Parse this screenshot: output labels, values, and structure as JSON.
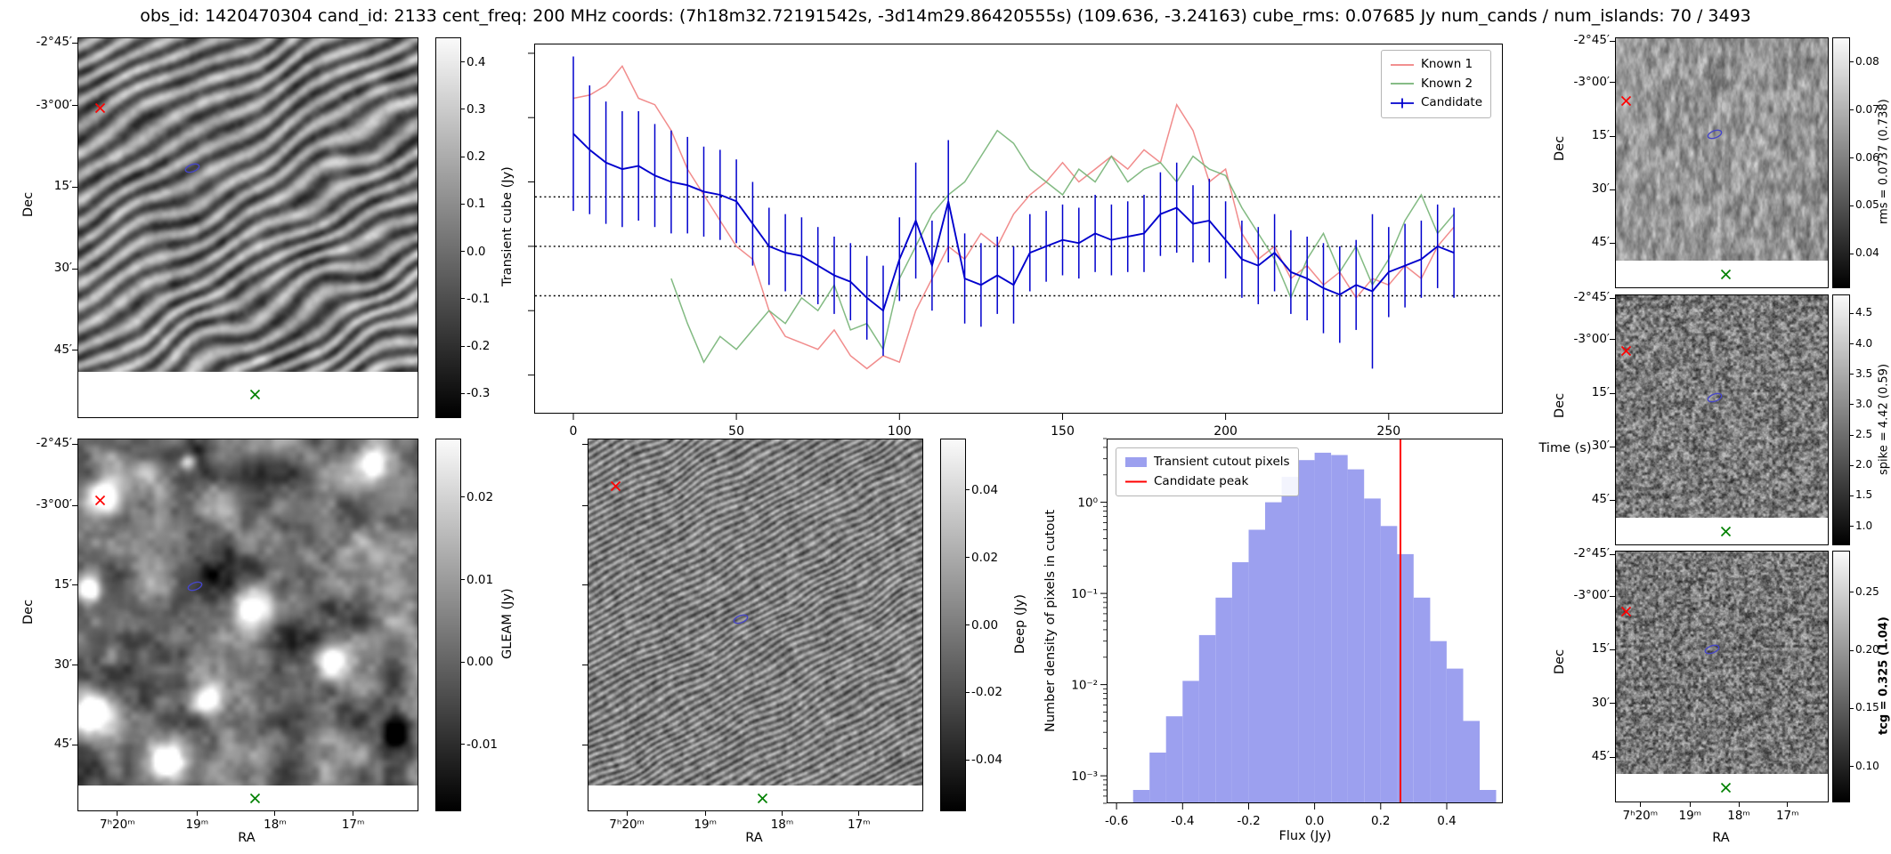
{
  "title": "obs_id: 1420470304 cand_id: 2133 cent_freq: 200 MHz coords: (7h18m32.72191542s, -3d14m29.86420555s) (109.636, -3.24163) cube_rms: 0.07685 Jy num_cands / num_islands: 70 / 3493",
  "axis_labels": {
    "dec": "Dec",
    "ra": "RA",
    "time": "Time (s)",
    "flux": "Flux (Jy)",
    "density": "Number density of pixels in cutout"
  },
  "dec_ticks": [
    "-2°45′",
    "-3°00′",
    "15′",
    "30′",
    "45′"
  ],
  "ra_ticks": [
    "7ʰ20ᵐ",
    "19ᵐ",
    "18ᵐ",
    "17ᵐ"
  ],
  "colors": {
    "known1": "#f08080",
    "known2": "#74b274",
    "candidate": "#0000cd",
    "hist_bar": "#7b80ea",
    "candidate_peak": "#ff0000",
    "marker_x_red": "#ff0000",
    "marker_x_green": "#008000",
    "marker_ellipse": "#4646c8"
  },
  "colorbars": {
    "transient": {
      "label": "Transient cube (Jy)",
      "min": -0.35,
      "max": 0.45,
      "ticks": [
        "0.4",
        "0.3",
        "0.2",
        "0.1",
        "0.0",
        "-0.1",
        "-0.2",
        "-0.3"
      ]
    },
    "gleam": {
      "label": "GLEAM (Jy)",
      "min": -0.018,
      "max": 0.027,
      "ticks": [
        "0.02",
        "0.01",
        "0.00",
        "-0.01"
      ]
    },
    "deep": {
      "label": "Deep (Jy)",
      "min": -0.055,
      "max": 0.055,
      "ticks": [
        "0.04",
        "0.02",
        "0.00",
        "-0.02",
        "-0.04"
      ]
    },
    "rms": {
      "label": "rms = 0.0737 (0.738)",
      "min": 0.033,
      "max": 0.085,
      "ticks": [
        "0.08",
        "0.07",
        "0.06",
        "0.05",
        "0.04"
      ]
    },
    "spike": {
      "label": "spike = 4.42 (0.59)",
      "min": 0.7,
      "max": 4.8,
      "ticks": [
        "4.5",
        "4.0",
        "3.5",
        "3.0",
        "2.5",
        "2.0",
        "1.5",
        "1.0"
      ]
    },
    "tcg": {
      "label": "tcg = 0.325 (1.04)",
      "min": 0.07,
      "max": 0.285,
      "ticks": [
        "0.25",
        "0.20",
        "0.15",
        "0.10"
      ],
      "bold": true
    }
  },
  "chart_data": [
    {
      "type": "line",
      "title": "",
      "xlabel": "Time (s)",
      "ylabel": "",
      "xlim": [
        -12,
        285
      ],
      "ylim": [
        -0.26,
        0.315
      ],
      "xticks": [
        0,
        50,
        100,
        150,
        200,
        250
      ],
      "yticks_minor": [
        -0.2,
        -0.1,
        0,
        0.1,
        0.2,
        0.3
      ],
      "hlines": [
        0.0769,
        0,
        -0.0769
      ],
      "legend_position": "upper right",
      "x": [
        0,
        5,
        10,
        15,
        20,
        25,
        30,
        35,
        40,
        45,
        50,
        55,
        60,
        65,
        70,
        75,
        80,
        85,
        90,
        95,
        100,
        105,
        110,
        115,
        120,
        125,
        130,
        135,
        140,
        145,
        150,
        155,
        160,
        165,
        170,
        175,
        180,
        185,
        190,
        195,
        200,
        205,
        210,
        215,
        220,
        225,
        230,
        235,
        240,
        245,
        250,
        255,
        260,
        265,
        270
      ],
      "series": [
        {
          "name": "Known 1",
          "color": "#f08080",
          "values": [
            0.23,
            0.235,
            0.25,
            0.28,
            0.23,
            0.22,
            0.18,
            0.12,
            0.08,
            0.04,
            0.0,
            -0.02,
            -0.1,
            -0.14,
            -0.15,
            -0.16,
            -0.13,
            -0.17,
            -0.19,
            -0.17,
            -0.18,
            -0.1,
            -0.05,
            0.0,
            -0.02,
            0.02,
            0.0,
            0.05,
            0.08,
            0.1,
            0.13,
            0.1,
            0.12,
            0.14,
            0.12,
            0.15,
            0.13,
            0.22,
            0.18,
            0.1,
            0.12,
            0.02,
            -0.02,
            0.0,
            -0.05,
            -0.03,
            -0.06,
            -0.04,
            -0.08,
            -0.05,
            -0.06,
            -0.03,
            -0.05,
            0.0,
            0.03
          ]
        },
        {
          "name": "Known 2",
          "color": "#74b274",
          "values": [
            null,
            null,
            null,
            null,
            null,
            null,
            -0.05,
            -0.12,
            -0.18,
            -0.14,
            -0.16,
            -0.13,
            -0.1,
            -0.12,
            -0.08,
            -0.1,
            -0.06,
            -0.13,
            -0.12,
            -0.16,
            -0.05,
            0.0,
            0.05,
            0.08,
            0.1,
            0.14,
            0.18,
            0.16,
            0.12,
            0.1,
            0.08,
            0.12,
            0.1,
            0.14,
            0.1,
            0.12,
            0.13,
            0.1,
            0.14,
            0.12,
            0.11,
            0.06,
            0.02,
            -0.02,
            -0.08,
            -0.02,
            0.02,
            -0.04,
            0.0,
            -0.06,
            -0.02,
            0.04,
            0.08,
            0.02,
            0.05
          ]
        },
        {
          "name": "Candidate",
          "color": "#0000cd",
          "values": [
            0.175,
            0.15,
            0.13,
            0.12,
            0.125,
            0.11,
            0.1,
            0.095,
            0.085,
            0.08,
            0.07,
            0.035,
            0.0,
            -0.01,
            -0.015,
            -0.03,
            -0.045,
            -0.055,
            -0.08,
            -0.1,
            -0.02,
            0.04,
            -0.03,
            0.07,
            -0.05,
            -0.06,
            -0.045,
            -0.06,
            -0.01,
            0.0,
            0.01,
            0.005,
            0.02,
            0.01,
            0.015,
            0.02,
            0.05,
            0.06,
            0.035,
            0.04,
            0.01,
            -0.02,
            -0.03,
            -0.01,
            -0.04,
            -0.05,
            -0.065,
            -0.075,
            -0.06,
            -0.07,
            -0.04,
            -0.03,
            -0.02,
            0.0,
            -0.01
          ],
          "errors": [
            0.12,
            0.1,
            0.095,
            0.09,
            0.085,
            0.08,
            0.08,
            0.075,
            0.07,
            0.07,
            0.065,
            0.065,
            0.06,
            0.06,
            0.06,
            0.06,
            0.06,
            0.06,
            0.065,
            0.07,
            0.065,
            0.09,
            0.07,
            0.095,
            0.07,
            0.065,
            0.06,
            0.06,
            0.06,
            0.055,
            0.055,
            0.055,
            0.06,
            0.055,
            0.055,
            0.06,
            0.065,
            0.07,
            0.06,
            0.065,
            0.06,
            0.06,
            0.06,
            0.06,
            0.065,
            0.065,
            0.07,
            0.075,
            0.07,
            0.12,
            0.07,
            0.065,
            0.06,
            0.065,
            0.07
          ]
        }
      ]
    },
    {
      "type": "bar",
      "xlabel": "Flux (Jy)",
      "ylabel": "Number density of pixels in cutout",
      "yscale": "log",
      "xlim": [
        -0.63,
        0.57
      ],
      "ylim": [
        0.0005,
        5
      ],
      "bin_start": -0.55,
      "bin_width": 0.05,
      "values": [
        0.0007,
        0.0018,
        0.0045,
        0.011,
        0.035,
        0.09,
        0.22,
        0.5,
        1.0,
        1.9,
        2.9,
        3.5,
        3.3,
        2.3,
        1.1,
        0.55,
        0.27,
        0.09,
        0.03,
        0.015,
        0.004,
        0.0007
      ],
      "bar_color": "#7b80ea",
      "vline": {
        "x": 0.26,
        "color": "#ff0000",
        "label": "Candidate peak"
      },
      "legend": [
        "Transient cutout pixels",
        "Candidate peak"
      ],
      "xticks": [
        -0.6,
        -0.4,
        -0.2,
        0,
        0.2,
        0.4
      ],
      "yticks": [
        {
          "label": "10⁰",
          "value": 1
        },
        {
          "label": "10⁻¹",
          "value": 0.1
        },
        {
          "label": "10⁻²",
          "value": 0.01
        },
        {
          "label": "10⁻³",
          "value": 0.001
        }
      ]
    }
  ]
}
